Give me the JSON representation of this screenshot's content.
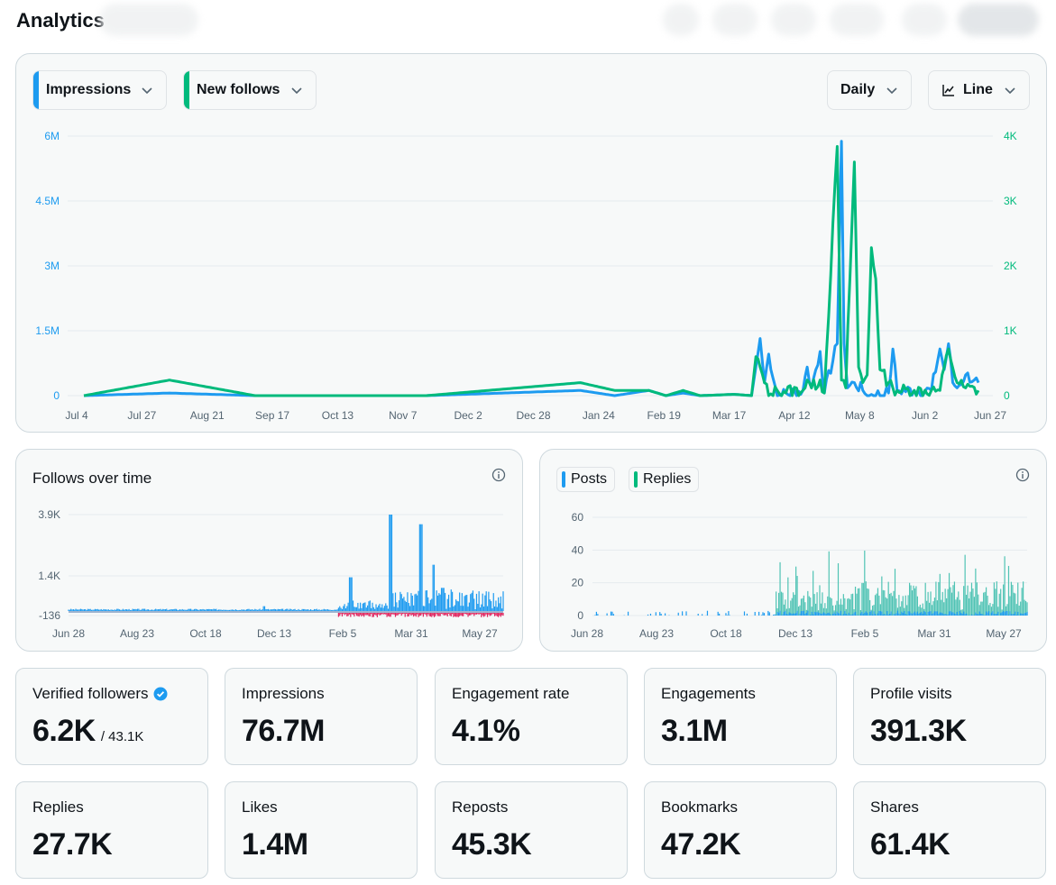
{
  "page": {
    "title": "Analytics"
  },
  "main_chart": {
    "metric_1": "Impressions",
    "metric_2": "New follows",
    "interval": "Daily",
    "chart_type": "Line",
    "colors": {
      "impressions": "#1d9bf0",
      "new_follows": "#00ba7c"
    }
  },
  "follows_card": {
    "title": "Follows over time"
  },
  "posts_card": {
    "legend_posts": "Posts",
    "legend_replies": "Replies"
  },
  "stats": [
    {
      "label": "Verified followers",
      "value": "6.2K",
      "sub": "/ 43.1K",
      "verified": true
    },
    {
      "label": "Impressions",
      "value": "76.7M"
    },
    {
      "label": "Engagement rate",
      "value": "4.1%"
    },
    {
      "label": "Engagements",
      "value": "3.1M"
    },
    {
      "label": "Profile visits",
      "value": "391.3K"
    },
    {
      "label": "Replies",
      "value": "27.7K"
    },
    {
      "label": "Likes",
      "value": "1.4M"
    },
    {
      "label": "Reposts",
      "value": "45.3K"
    },
    {
      "label": "Bookmarks",
      "value": "47.2K"
    },
    {
      "label": "Shares",
      "value": "61.4K"
    }
  ],
  "chart_data": [
    {
      "type": "line",
      "title": "",
      "x_ticks": [
        "Jul 4",
        "Jul 27",
        "Aug 21",
        "Sep 17",
        "Oct 13",
        "Nov 7",
        "Dec 2",
        "Dec 28",
        "Jan 24",
        "Feb 19",
        "Mar 17",
        "Apr 12",
        "May 8",
        "Jun 2",
        "Jun 27"
      ],
      "y_left_ticks": [
        "0",
        "1.5M",
        "3M",
        "4.5M",
        "6M"
      ],
      "y_right_ticks": [
        "0",
        "1K",
        "2K",
        "3K",
        "4K"
      ],
      "y_left_range": [
        0,
        6000000
      ],
      "y_right_range": [
        0,
        4000
      ],
      "grid": true,
      "series": [
        {
          "name": "Impressions",
          "axis": "left",
          "color": "#1d9bf0",
          "points": [
            [
              0,
              0.0
            ],
            [
              0.1,
              0.01
            ],
            [
              0.2,
              0.0
            ],
            [
              0.4,
              0.0
            ],
            [
              0.58,
              0.02
            ],
            [
              0.62,
              0.0
            ],
            [
              0.66,
              0.02
            ],
            [
              0.68,
              0.0
            ],
            [
              0.7,
              0.01
            ],
            [
              0.72,
              0.0
            ],
            [
              0.76,
              0.005
            ],
            [
              0.78,
              0.0
            ],
            [
              0.79,
              0.22
            ],
            [
              0.795,
              0.05
            ],
            [
              0.8,
              0.16
            ],
            [
              0.81,
              0.0
            ],
            [
              0.84,
              0.02
            ],
            [
              0.845,
              0.11
            ],
            [
              0.85,
              0.03
            ],
            [
              0.86,
              0.17
            ],
            [
              0.865,
              0.01
            ],
            [
              0.88,
              0.2
            ],
            [
              0.885,
              0.98
            ],
            [
              0.888,
              0.2
            ],
            [
              0.892,
              0.03
            ],
            [
              0.9,
              0.05
            ],
            [
              0.91,
              0.02
            ],
            [
              0.915,
              0.0
            ],
            [
              0.94,
              0.01
            ],
            [
              0.945,
              0.18
            ],
            [
              0.95,
              0.02
            ],
            [
              0.97,
              0.02
            ],
            [
              0.99,
              0.02
            ],
            [
              1.0,
              0.18
            ],
            [
              1.005,
              0.1
            ],
            [
              1.01,
              0.2
            ],
            [
              1.015,
              0.05
            ],
            [
              1.02,
              0.03
            ],
            [
              1.03,
              0.08
            ],
            [
              1.04,
              0.06
            ],
            [
              1.045,
              0.05
            ]
          ]
        },
        {
          "name": "New follows",
          "axis": "right",
          "color": "#00ba7c",
          "points": [
            [
              0,
              0.0
            ],
            [
              0.1,
              0.06
            ],
            [
              0.2,
              0.0
            ],
            [
              0.4,
              0.0
            ],
            [
              0.58,
              0.05
            ],
            [
              0.62,
              0.02
            ],
            [
              0.66,
              0.02
            ],
            [
              0.68,
              0.0
            ],
            [
              0.7,
              0.02
            ],
            [
              0.72,
              0.0
            ],
            [
              0.76,
              0.005
            ],
            [
              0.78,
              0.0
            ],
            [
              0.785,
              0.15
            ],
            [
              0.79,
              0.11
            ],
            [
              0.795,
              0.05
            ],
            [
              0.8,
              0.0
            ],
            [
              0.81,
              0.02
            ],
            [
              0.84,
              0.02
            ],
            [
              0.845,
              0.06
            ],
            [
              0.85,
              0.03
            ],
            [
              0.86,
              0.06
            ],
            [
              0.865,
              0.01
            ],
            [
              0.88,
              0.96
            ],
            [
              0.885,
              0.06
            ],
            [
              0.89,
              0.03
            ],
            [
              0.9,
              0.9
            ],
            [
              0.905,
              0.11
            ],
            [
              0.91,
              0.05
            ],
            [
              0.915,
              0.08
            ],
            [
              0.92,
              0.57
            ],
            [
              0.925,
              0.45
            ],
            [
              0.93,
              0.1
            ],
            [
              0.94,
              0.05
            ],
            [
              0.945,
              0.03
            ],
            [
              0.95,
              0.02
            ],
            [
              0.97,
              0.02
            ],
            [
              0.99,
              0.02
            ],
            [
              1.0,
              0.02
            ],
            [
              1.01,
              0.18
            ],
            [
              1.02,
              0.05
            ],
            [
              1.03,
              0.03
            ],
            [
              1.045,
              0.02
            ]
          ]
        }
      ]
    },
    {
      "type": "bar",
      "title": "Follows over time",
      "x_ticks": [
        "Jun 28",
        "Aug 23",
        "Oct 18",
        "Dec 13",
        "Feb 5",
        "Mar 31",
        "May 27"
      ],
      "y_ticks": [
        "-136",
        "1.4K",
        "3.9K"
      ],
      "y_range": [
        -136,
        3900
      ],
      "series": [
        {
          "name": "",
          "color": "#1d9bf0",
          "sign": "positive",
          "peaks": [
            [
              0.45,
              0.05
            ],
            [
              0.65,
              0.35
            ],
            [
              0.74,
              1.0
            ],
            [
              0.81,
              0.9
            ],
            [
              0.84,
              0.48
            ],
            [
              0.86,
              0.24
            ]
          ]
        },
        {
          "name": "",
          "color": "#e0245e",
          "sign": "negative"
        }
      ]
    },
    {
      "type": "bar",
      "title": "",
      "x_ticks": [
        "Jun 28",
        "Aug 23",
        "Oct 18",
        "Dec 13",
        "Feb 5",
        "Mar 31",
        "May 27"
      ],
      "y_ticks": [
        "0",
        "20",
        "40",
        "60"
      ],
      "y_range": [
        0,
        60
      ],
      "series": [
        {
          "name": "Posts",
          "color": "#1d9bf0"
        },
        {
          "name": "Replies",
          "color": "#00ba7c"
        }
      ]
    }
  ]
}
